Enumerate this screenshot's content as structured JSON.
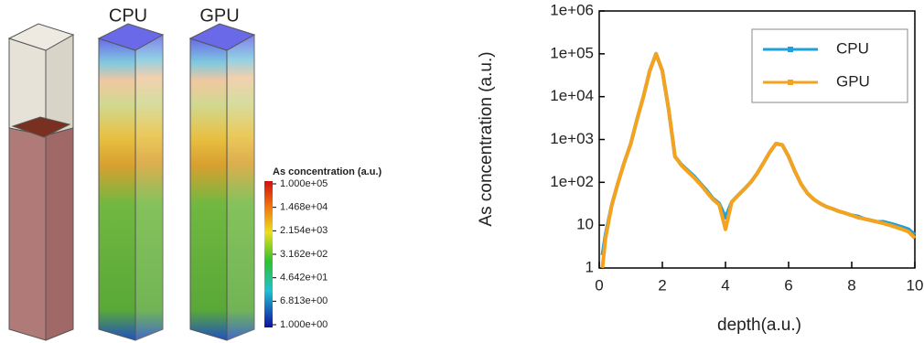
{
  "render_panel": {
    "labels": [
      "CPU",
      "GPU"
    ],
    "colorbar": {
      "title": "As concentration (a.u.)",
      "log": true,
      "clim": [
        1,
        100000
      ],
      "ticks": [
        {
          "value": 100000,
          "label": "1.000e+05"
        },
        {
          "value": 14680,
          "label": "1.468e+04"
        },
        {
          "value": 2154,
          "label": "2.154e+03"
        },
        {
          "value": 316.2,
          "label": "3.162e+02"
        },
        {
          "value": 46.42,
          "label": "4.642e+01"
        },
        {
          "value": 6.813,
          "label": "6.813e+00"
        },
        {
          "value": 1,
          "label": "1.000e+00"
        }
      ]
    }
  },
  "chart_data": {
    "type": "line",
    "xlabel": "depth(a.u.)",
    "ylabel": "As concentration (a.u.)",
    "yscale": "log",
    "legend": "upper right",
    "xlim": [
      0,
      10
    ],
    "xticks": [
      0,
      2,
      4,
      6,
      8,
      10
    ],
    "ylim": [
      1,
      1000000
    ],
    "yticks": [
      1,
      10,
      {
        "value": 100,
        "label": "1e+02"
      },
      {
        "value": 1000,
        "label": "1e+03"
      },
      {
        "value": 10000,
        "label": "1e+04"
      },
      {
        "value": 100000,
        "label": "1e+05"
      },
      {
        "value": 1000000,
        "label": "1e+06"
      }
    ],
    "x": [
      0.1,
      0.2,
      0.4,
      0.6,
      0.8,
      1.0,
      1.2,
      1.4,
      1.6,
      1.8,
      2.0,
      2.2,
      2.4,
      2.6,
      2.8,
      3.0,
      3.2,
      3.4,
      3.6,
      3.8,
      4.0,
      4.2,
      4.4,
      4.6,
      4.8,
      5.0,
      5.2,
      5.4,
      5.6,
      5.8,
      6.0,
      6.2,
      6.4,
      6.6,
      6.8,
      7.0,
      7.2,
      7.4,
      7.6,
      7.8,
      8.0,
      8.2,
      8.4,
      8.6,
      8.8,
      9.0,
      9.2,
      9.4,
      9.6,
      9.8,
      10.0
    ],
    "series": [
      {
        "name": "CPU",
        "color": "#1ea0dc",
        "values": [
          2,
          6,
          30,
          100,
          300,
          800,
          3000,
          10000,
          40000,
          100000,
          40000,
          5000,
          400,
          260,
          190,
          140,
          95,
          65,
          42,
          32,
          15,
          35,
          50,
          70,
          100,
          160,
          280,
          500,
          800,
          750,
          400,
          180,
          90,
          55,
          40,
          32,
          27,
          24,
          21,
          19,
          17,
          16,
          14,
          13,
          12,
          12,
          11,
          10,
          9,
          8,
          6
        ]
      },
      {
        "name": "GPU",
        "color": "#f5a31e",
        "values": [
          1,
          5,
          30,
          100,
          300,
          800,
          3000,
          10000,
          40000,
          100000,
          40000,
          5000,
          400,
          250,
          180,
          130,
          90,
          60,
          40,
          30,
          8,
          35,
          50,
          70,
          100,
          160,
          280,
          500,
          800,
          750,
          400,
          180,
          90,
          55,
          40,
          32,
          27,
          24,
          21,
          19,
          17,
          15,
          14,
          13,
          12,
          11,
          10,
          9,
          8,
          7,
          5
        ]
      }
    ]
  }
}
